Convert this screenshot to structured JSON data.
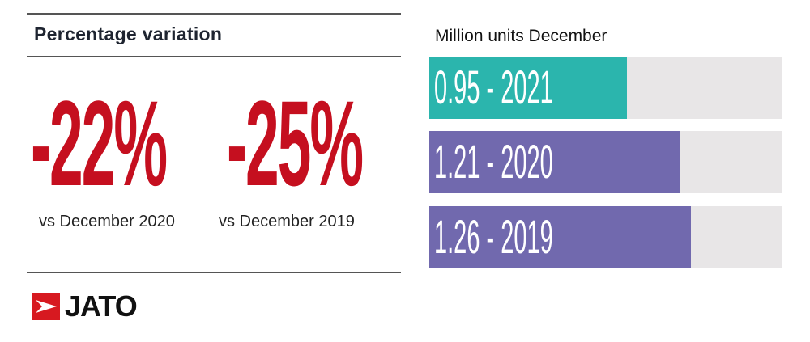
{
  "title": "Percentage variation",
  "stats": [
    {
      "value": "-22%",
      "caption": "vs December 2020"
    },
    {
      "value": "-25%",
      "caption": "vs December 2019"
    }
  ],
  "logo": "JATO",
  "chart_data": {
    "type": "bar",
    "orientation": "horizontal",
    "title": "Million units December",
    "categories": [
      "2021",
      "2020",
      "2019"
    ],
    "values": [
      0.95,
      1.21,
      1.26
    ],
    "labels": [
      "0.95 - 2021",
      "1.21 - 2020",
      "1.26 - 2019"
    ],
    "colors": [
      "#2bb5ad",
      "#7169ae",
      "#7169ae"
    ],
    "track_color": "#e8e6e7",
    "xlim": [
      0,
      1.7
    ],
    "grid": false
  }
}
